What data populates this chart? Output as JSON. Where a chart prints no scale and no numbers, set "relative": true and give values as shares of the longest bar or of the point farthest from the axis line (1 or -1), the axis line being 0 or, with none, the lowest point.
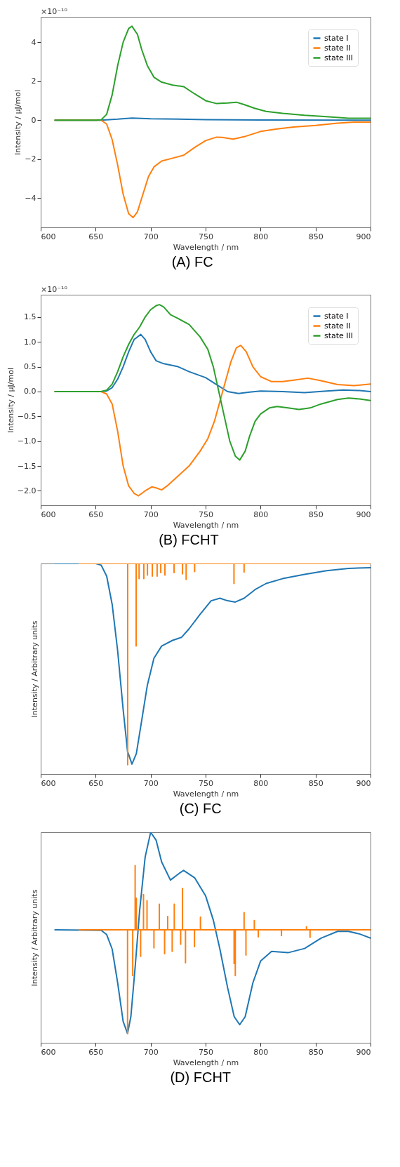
{
  "chart_data": [
    {
      "type": "line",
      "title": "(A) FC",
      "xlabel": "Wavelength / nm",
      "ylabel": "Intensity / μJ/mol",
      "annotations": [
        "×10⁻¹⁰"
      ],
      "legend": "top right",
      "grid": false,
      "xlim": [
        600,
        900
      ],
      "xticks": [
        600,
        650,
        700,
        750,
        800,
        850,
        900
      ],
      "ylim": [
        -5.5,
        5.3
      ],
      "yticks": [
        {
          "value": -4,
          "label": "−4"
        },
        {
          "value": -2,
          "label": "−2"
        },
        0,
        2,
        4
      ],
      "series": [
        {
          "name": "state I",
          "color": "#1f77b4",
          "x": [
            613,
            655,
            670,
            683,
            700,
            750,
            800,
            900
          ],
          "values": [
            0,
            0,
            0.05,
            0.11,
            0.07,
            0.03,
            0.01,
            0
          ]
        },
        {
          "name": "state II",
          "color": "#ff7f0e",
          "x": [
            613,
            655,
            660,
            665,
            670,
            675,
            680,
            684,
            688,
            693,
            698,
            703,
            710,
            720,
            730,
            740,
            750,
            760,
            765,
            775,
            785,
            800,
            815,
            830,
            850,
            870,
            885,
            900
          ],
          "values": [
            0,
            0,
            -0.2,
            -1.0,
            -2.3,
            -3.8,
            -4.8,
            -5.0,
            -4.7,
            -3.8,
            -2.9,
            -2.4,
            -2.1,
            -1.95,
            -1.8,
            -1.4,
            -1.05,
            -0.87,
            -0.88,
            -0.97,
            -0.85,
            -0.58,
            -0.45,
            -0.35,
            -0.27,
            -0.15,
            -0.1,
            -0.1
          ]
        },
        {
          "name": "state III",
          "color": "#2ca02c",
          "x": [
            613,
            650,
            655,
            660,
            665,
            670,
            675,
            680,
            683,
            688,
            692,
            697,
            703,
            710,
            720,
            730,
            740,
            750,
            760,
            770,
            778,
            785,
            795,
            805,
            820,
            840,
            860,
            880,
            900
          ],
          "values": [
            0,
            0,
            0.02,
            0.3,
            1.3,
            2.8,
            4.0,
            4.7,
            4.82,
            4.4,
            3.6,
            2.8,
            2.2,
            1.95,
            1.8,
            1.72,
            1.35,
            1.0,
            0.85,
            0.88,
            0.92,
            0.8,
            0.6,
            0.45,
            0.35,
            0.25,
            0.18,
            0.1,
            0.1
          ]
        }
      ]
    },
    {
      "type": "line",
      "title": "(B)  FCHT",
      "xlabel": "Wavelength / nm",
      "ylabel": "Intensity / μJ/mol",
      "annotations": [
        "×10⁻¹⁰"
      ],
      "legend": "top right",
      "grid": false,
      "xlim": [
        600,
        900
      ],
      "xticks": [
        600,
        650,
        700,
        750,
        800,
        850,
        900
      ],
      "ylim": [
        -2.29,
        1.95
      ],
      "yticks": [
        {
          "value": -2,
          "label": "−2.0"
        },
        {
          "value": -1.5,
          "label": "−1.5"
        },
        {
          "value": -1,
          "label": "−1.0"
        },
        {
          "value": -0.5,
          "label": "−0.5"
        },
        {
          "value": 0,
          "label": "0.0"
        },
        0.5,
        {
          "value": 1,
          "label": "1.0"
        },
        1.5
      ],
      "series": [
        {
          "name": "state I",
          "color": "#1f77b4",
          "x": [
            613,
            655,
            660,
            665,
            670,
            675,
            680,
            685,
            691,
            695,
            700,
            705,
            712,
            725,
            735,
            750,
            760,
            770,
            780,
            790,
            800,
            820,
            840,
            860,
            875,
            890,
            900
          ],
          "values": [
            0,
            0,
            0.01,
            0.08,
            0.25,
            0.5,
            0.8,
            1.05,
            1.15,
            1.05,
            0.8,
            0.62,
            0.56,
            0.5,
            0.4,
            0.28,
            0.14,
            0.0,
            -0.04,
            -0.01,
            0.01,
            0.0,
            -0.02,
            0.01,
            0.03,
            0.02,
            0.0
          ]
        },
        {
          "name": "state II",
          "color": "#ff7f0e",
          "x": [
            613,
            655,
            660,
            665,
            670,
            675,
            680,
            685,
            689,
            695,
            701,
            705,
            710,
            715,
            725,
            735,
            745,
            752,
            758,
            763,
            768,
            773,
            778,
            782,
            787,
            793,
            800,
            810,
            820,
            830,
            843,
            855,
            870,
            885,
            900
          ],
          "values": [
            0,
            0,
            -0.05,
            -0.25,
            -0.8,
            -1.5,
            -1.9,
            -2.05,
            -2.1,
            -2.0,
            -1.92,
            -1.94,
            -1.98,
            -1.9,
            -1.7,
            -1.5,
            -1.2,
            -0.95,
            -0.6,
            -0.2,
            0.2,
            0.6,
            0.88,
            0.93,
            0.8,
            0.5,
            0.3,
            0.2,
            0.2,
            0.23,
            0.27,
            0.22,
            0.14,
            0.12,
            0.15
          ]
        },
        {
          "name": "state III",
          "color": "#2ca02c",
          "x": [
            613,
            655,
            660,
            665,
            670,
            675,
            680,
            685,
            690,
            695,
            700,
            705,
            708,
            712,
            718,
            725,
            735,
            745,
            752,
            757,
            762,
            767,
            772,
            777,
            781,
            786,
            790,
            795,
            800,
            808,
            815,
            825,
            835,
            845,
            855,
            870,
            880,
            890,
            900
          ],
          "values": [
            0,
            0,
            0.03,
            0.15,
            0.4,
            0.7,
            0.95,
            1.15,
            1.3,
            1.5,
            1.65,
            1.73,
            1.75,
            1.7,
            1.55,
            1.47,
            1.35,
            1.1,
            0.85,
            0.5,
            0.0,
            -0.5,
            -1.0,
            -1.3,
            -1.38,
            -1.2,
            -0.9,
            -0.6,
            -0.45,
            -0.33,
            -0.3,
            -0.33,
            -0.36,
            -0.33,
            -0.25,
            -0.16,
            -0.13,
            -0.15,
            -0.18
          ]
        }
      ]
    },
    {
      "type": "line",
      "title": "(C)  FC",
      "xlabel": "Wavelength / nm",
      "ylabel": "Intensity / Arbitrary units",
      "relative": true,
      "legend": false,
      "grid": false,
      "xlim": [
        600,
        900
      ],
      "xticks": [
        600,
        650,
        700,
        750,
        800,
        850,
        900
      ],
      "series": [
        {
          "color": "#1f77b4",
          "x": [
            613,
            650,
            655,
            660,
            665,
            670,
            675,
            679,
            683,
            687,
            692,
            697,
            703,
            710,
            720,
            728,
            735,
            745,
            755,
            763,
            770,
            777,
            785,
            795,
            805,
            820,
            840,
            860,
            880,
            900
          ],
          "values": [
            1.0,
            1.0,
            0.992,
            0.94,
            0.806,
            0.585,
            0.306,
            0.108,
            0.047,
            0.097,
            0.259,
            0.422,
            0.55,
            0.608,
            0.635,
            0.649,
            0.69,
            0.759,
            0.823,
            0.835,
            0.823,
            0.817,
            0.835,
            0.876,
            0.905,
            0.928,
            0.948,
            0.966,
            0.977,
            0.98
          ]
        },
        {
          "color": "#ff7f0e",
          "x": [
            635,
            679.1,
            679.1,
            679.1,
            686.8,
            686.8,
            686.8,
            689.5,
            689.5,
            689.5,
            693.8,
            693.8,
            693.8,
            697.1,
            697.1,
            697.1,
            701.5,
            701.5,
            701.5,
            705.9,
            705.9,
            705.9,
            709.2,
            709.2,
            709.2,
            713,
            713,
            713,
            721.3,
            721.3,
            721.3,
            729,
            729,
            729,
            732.3,
            732.3,
            732.3,
            740,
            740,
            740,
            775.8,
            775.8,
            775.8,
            785,
            785,
            785,
            900
          ],
          "values": [
            1,
            1,
            0.044,
            1,
            1,
            0.608,
            1,
            1,
            0.928,
            1,
            1,
            0.928,
            1,
            1,
            0.945,
            1,
            1,
            0.94,
            1,
            1,
            0.94,
            1,
            1,
            0.957,
            1,
            1,
            0.945,
            1,
            1,
            0.957,
            1,
            1,
            0.951,
            1,
            1,
            0.924,
            1,
            1,
            0.962,
            1,
            1,
            0.905,
            1,
            1,
            0.959,
            1,
            1
          ]
        }
      ]
    },
    {
      "type": "line",
      "title": "(D)  FCHT",
      "xlabel": "Wavelength / nm",
      "ylabel": "Intensity / Arbitrary units",
      "relative": true,
      "legend": false,
      "grid": false,
      "xlim": [
        600,
        900
      ],
      "xticks": [
        600,
        650,
        700,
        750,
        800,
        850,
        900
      ],
      "series": [
        {
          "color": "#1f77b4",
          "x": [
            613,
            655,
            660,
            665,
            670,
            675,
            679,
            682,
            686,
            690,
            695,
            700,
            705,
            710,
            718,
            725,
            730,
            740,
            750,
            757,
            763,
            770,
            776,
            781,
            786,
            793,
            800,
            810,
            825,
            840,
            855,
            870,
            880,
            890,
            900
          ],
          "values": [
            0.537,
            0.534,
            0.514,
            0.445,
            0.285,
            0.101,
            0.044,
            0.124,
            0.365,
            0.629,
            0.882,
            1.0,
            0.962,
            0.859,
            0.773,
            0.801,
            0.819,
            0.784,
            0.698,
            0.583,
            0.445,
            0.262,
            0.124,
            0.086,
            0.124,
            0.285,
            0.388,
            0.434,
            0.428,
            0.448,
            0.497,
            0.529,
            0.529,
            0.517,
            0.497
          ]
        },
        {
          "color": "#ff7f0e",
          "x": [
            635,
            679,
            679,
            679,
            683.7,
            683.7,
            683.7,
            685.9,
            685.9,
            685.9,
            687,
            687,
            687,
            690.9,
            690.9,
            690.9,
            693.5,
            693.5,
            693.5,
            696.7,
            696.7,
            696.7,
            703,
            703,
            703,
            707.9,
            707.9,
            707.9,
            712.7,
            712.7,
            712.7,
            715.5,
            715.5,
            715.5,
            719.6,
            719.6,
            719.6,
            721.5,
            721.5,
            721.5,
            727.3,
            727.3,
            727.3,
            729,
            729,
            729,
            731.7,
            731.7,
            731.7,
            739.9,
            739.9,
            739.9,
            745.3,
            745.3,
            745.3,
            775.9,
            775.9,
            775.9,
            777,
            777,
            777,
            785,
            785,
            785,
            786.7,
            786.7,
            786.7,
            794.3,
            794.3,
            794.3,
            797.9,
            797.9,
            797.9,
            819,
            819,
            819,
            841.7,
            841.7,
            841.7,
            845,
            845,
            845,
            900
          ],
          "values": [
            0.537,
            0.537,
            0.044,
            0.537,
            0.537,
            0.319,
            0.537,
            0.537,
            0.842,
            0.537,
            0.537,
            0.687,
            0.537,
            0.537,
            0.411,
            0.537,
            0.537,
            0.704,
            0.537,
            0.537,
            0.675,
            0.537,
            0.537,
            0.451,
            0.537,
            0.537,
            0.658,
            0.537,
            0.537,
            0.423,
            0.537,
            0.537,
            0.6,
            0.537,
            0.537,
            0.434,
            0.537,
            0.537,
            0.658,
            0.537,
            0.537,
            0.468,
            0.537,
            0.537,
            0.733,
            0.537,
            0.537,
            0.38,
            0.537,
            0.537,
            0.457,
            0.537,
            0.537,
            0.597,
            0.537,
            0.537,
            0.377,
            0.537,
            0.537,
            0.319,
            0.537,
            0.537,
            0.618,
            0.537,
            0.537,
            0.417,
            0.537,
            0.537,
            0.581,
            0.537,
            0.537,
            0.503,
            0.537,
            0.537,
            0.509,
            0.537,
            0.537,
            0.551,
            0.537,
            0.537,
            0.501,
            0.537,
            0.537
          ]
        }
      ]
    }
  ]
}
